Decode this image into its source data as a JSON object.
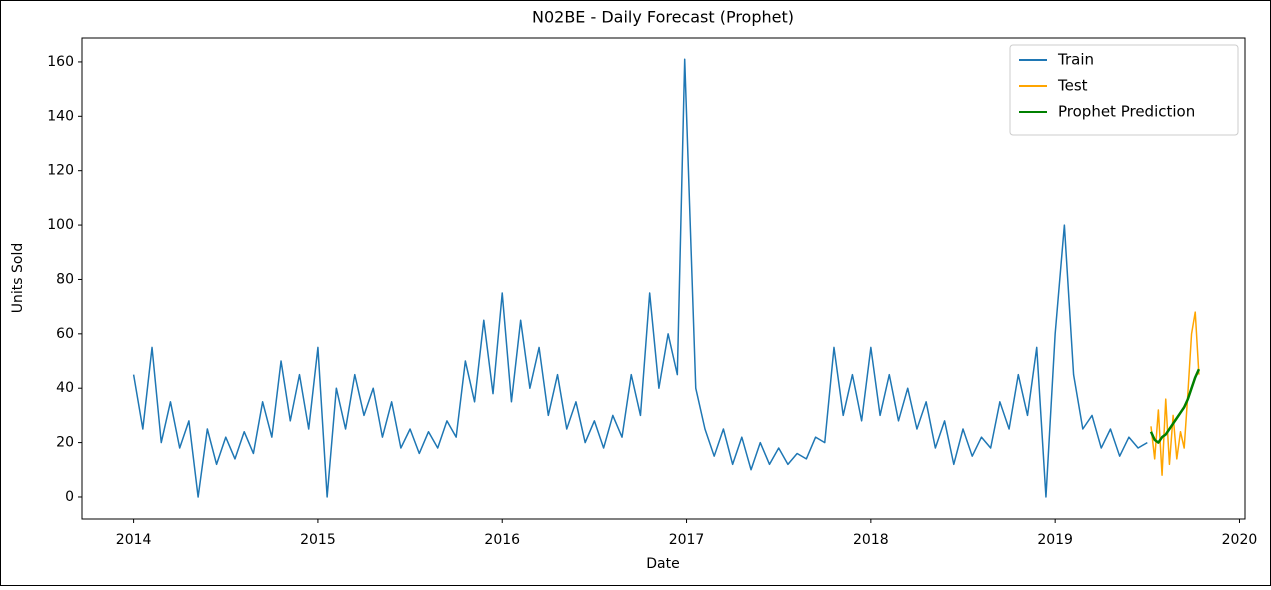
{
  "chart_data": {
    "type": "line",
    "title": "N02BE - Daily Forecast (Prophet)",
    "x_label": "Date",
    "y_label": "Units Sold",
    "xlim": [
      2013.72,
      2020.03
    ],
    "xticks": [
      2014,
      2015,
      2016,
      2017,
      2018,
      2019,
      2020
    ],
    "ylim": [
      -8.1,
      168.8
    ],
    "yticks": [
      0,
      20,
      40,
      60,
      80,
      100,
      120,
      140,
      160
    ],
    "legend": "upper right",
    "grid": false,
    "series": [
      {
        "name": "Train",
        "color": "#1f77b4",
        "x": [
          2014.0,
          2014.05,
          2014.1,
          2014.15,
          2014.2,
          2014.25,
          2014.3,
          2014.35,
          2014.4,
          2014.45,
          2014.5,
          2014.55,
          2014.6,
          2014.65,
          2014.7,
          2014.75,
          2014.8,
          2014.85,
          2014.9,
          2014.95,
          2015.0,
          2015.05,
          2015.1,
          2015.15,
          2015.2,
          2015.25,
          2015.3,
          2015.35,
          2015.4,
          2015.45,
          2015.5,
          2015.55,
          2015.6,
          2015.65,
          2015.7,
          2015.75,
          2015.8,
          2015.85,
          2015.9,
          2015.95,
          2016.0,
          2016.05,
          2016.1,
          2016.15,
          2016.2,
          2016.25,
          2016.3,
          2016.35,
          2016.4,
          2016.45,
          2016.5,
          2016.55,
          2016.6,
          2016.65,
          2016.7,
          2016.75,
          2016.8,
          2016.85,
          2016.9,
          2016.95,
          2016.99,
          2017.05,
          2017.1,
          2017.15,
          2017.2,
          2017.25,
          2017.3,
          2017.35,
          2017.4,
          2017.45,
          2017.5,
          2017.55,
          2017.6,
          2017.65,
          2017.7,
          2017.75,
          2017.8,
          2017.85,
          2017.9,
          2017.95,
          2018.0,
          2018.05,
          2018.1,
          2018.15,
          2018.2,
          2018.25,
          2018.3,
          2018.35,
          2018.4,
          2018.45,
          2018.5,
          2018.55,
          2018.6,
          2018.65,
          2018.7,
          2018.75,
          2018.8,
          2018.85,
          2018.9,
          2018.95,
          2019.0,
          2019.05,
          2019.1,
          2019.15,
          2019.2,
          2019.25,
          2019.3,
          2019.35,
          2019.4,
          2019.45,
          2019.5
        ],
        "values": [
          45,
          25,
          55,
          20,
          35,
          18,
          28,
          0,
          25,
          12,
          22,
          14,
          24,
          16,
          35,
          22,
          50,
          28,
          45,
          25,
          55,
          0,
          40,
          25,
          45,
          30,
          40,
          22,
          35,
          18,
          25,
          16,
          24,
          18,
          28,
          22,
          50,
          35,
          65,
          38,
          75,
          35,
          65,
          40,
          55,
          30,
          45,
          25,
          35,
          20,
          28,
          18,
          30,
          22,
          45,
          30,
          75,
          40,
          60,
          45,
          161,
          40,
          25,
          15,
          25,
          12,
          22,
          10,
          20,
          12,
          18,
          12,
          16,
          14,
          22,
          20,
          55,
          30,
          45,
          28,
          55,
          30,
          45,
          28,
          40,
          25,
          35,
          18,
          28,
          12,
          25,
          15,
          22,
          18,
          35,
          25,
          45,
          30,
          55,
          0,
          60,
          100,
          45,
          25,
          30,
          18,
          25,
          15,
          22,
          18,
          20
        ]
      },
      {
        "name": "Test",
        "color": "#ffa500",
        "x": [
          2019.52,
          2019.54,
          2019.56,
          2019.58,
          2019.6,
          2019.62,
          2019.64,
          2019.66,
          2019.68,
          2019.7,
          2019.72,
          2019.74,
          2019.76,
          2019.78
        ],
        "values": [
          26,
          14,
          32,
          8,
          36,
          12,
          30,
          14,
          24,
          18,
          38,
          60,
          68,
          45
        ]
      },
      {
        "name": "Prophet Prediction",
        "color": "#008000",
        "x": [
          2019.52,
          2019.54,
          2019.56,
          2019.58,
          2019.6,
          2019.62,
          2019.64,
          2019.66,
          2019.68,
          2019.7,
          2019.72,
          2019.74,
          2019.76,
          2019.78
        ],
        "values": [
          24,
          21,
          20,
          22,
          23,
          25,
          27,
          29,
          31,
          33,
          36,
          40,
          44,
          47
        ]
      }
    ]
  }
}
